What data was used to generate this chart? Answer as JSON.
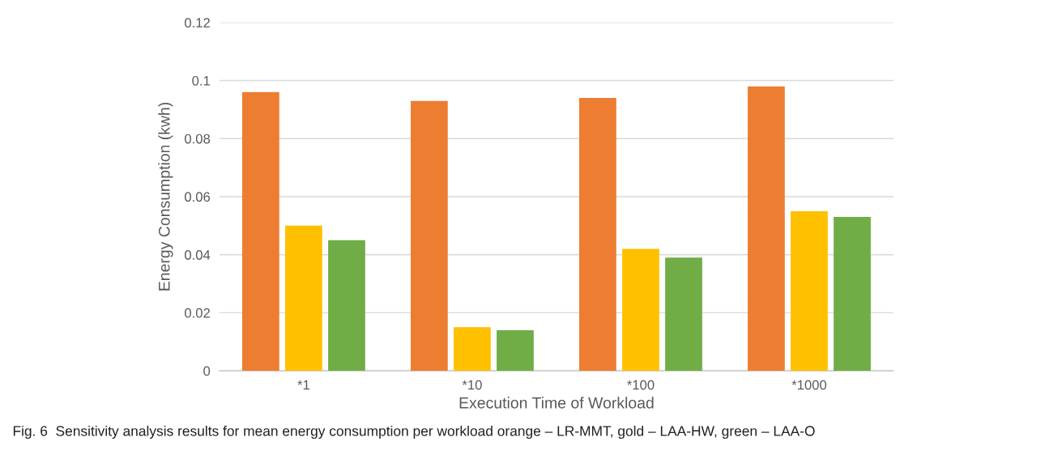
{
  "chart_data": {
    "type": "bar",
    "xlabel": "Execution Time of Workload",
    "ylabel": "Energy Consumption (kwh)",
    "categories": [
      "*1",
      "*10",
      "*100",
      "*1000"
    ],
    "series": [
      {
        "color": "#ed7d31",
        "values": [
          0.096,
          0.093,
          0.094,
          0.098
        ]
      },
      {
        "color": "#ffc000",
        "values": [
          0.05,
          0.015,
          0.042,
          0.055
        ]
      },
      {
        "color": "#70ad47",
        "values": [
          0.045,
          0.014,
          0.039,
          0.053
        ]
      }
    ],
    "ylim": [
      0,
      0.12
    ],
    "yticks": [
      0,
      0.02,
      0.04,
      0.06,
      0.08,
      0.1,
      0.12
    ],
    "grid": "y",
    "legend": false,
    "annotations": [
      "Fig. 6  Sensitivity analysis results for mean energy consumption per workload orange – LR-MMT, gold – LAA-HW, green – LAA-O"
    ]
  }
}
